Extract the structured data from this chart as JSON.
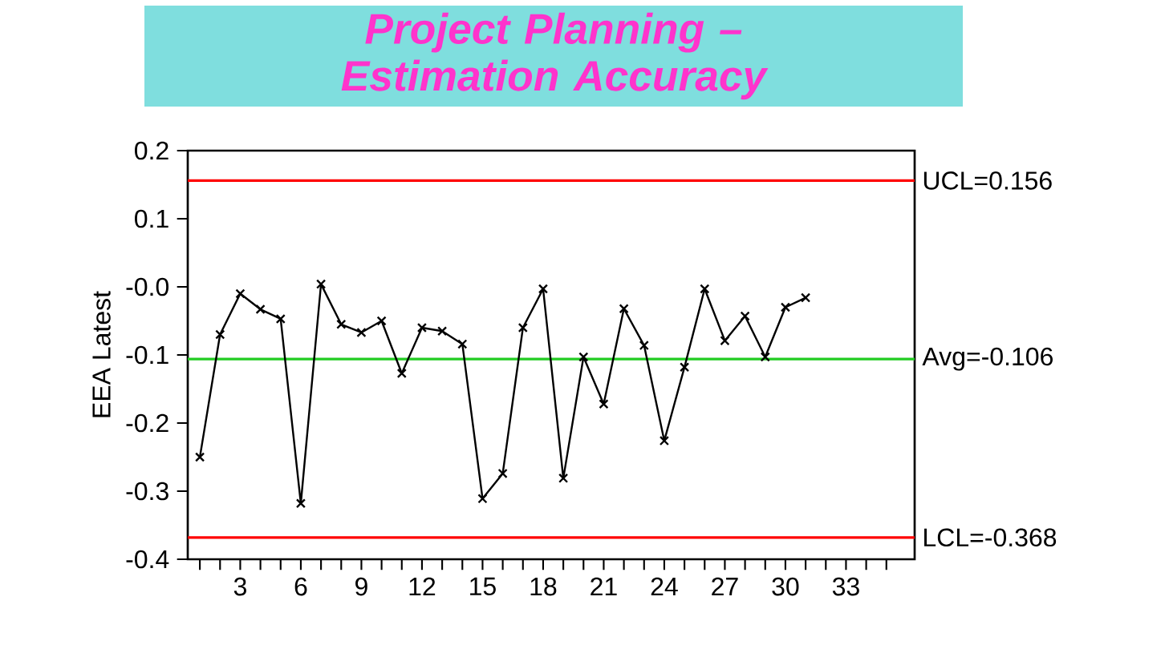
{
  "chart_data": {
    "type": "line",
    "title": "Project Planning – Estimation Accuracy",
    "ylabel": "EEA Latest",
    "x": [
      1,
      2,
      3,
      4,
      5,
      6,
      7,
      8,
      9,
      10,
      11,
      12,
      13,
      14,
      15,
      16,
      17,
      18,
      19,
      20,
      21,
      22,
      23,
      24,
      25,
      26,
      27,
      28,
      29,
      30,
      31
    ],
    "series": [
      {
        "color": "#000000",
        "values": [
          -0.25,
          -0.07,
          -0.01,
          -0.033,
          -0.047,
          -0.318,
          0.004,
          -0.055,
          -0.067,
          -0.05,
          -0.127,
          -0.06,
          -0.065,
          -0.084,
          -0.311,
          -0.274,
          -0.06,
          -0.003,
          -0.281,
          -0.103,
          -0.172,
          -0.032,
          -0.086,
          -0.226,
          -0.118,
          -0.003,
          -0.079,
          -0.043,
          -0.103,
          -0.03,
          -0.016
        ]
      }
    ],
    "marker": "cross",
    "line_style": "solid",
    "xlim": [
      0.4,
      36.4
    ],
    "ylim": [
      -0.4,
      0.2
    ],
    "xticks": [
      {
        "value": 1,
        "label": null
      },
      {
        "value": 2,
        "label": null
      },
      3,
      {
        "value": 4,
        "label": null
      },
      {
        "value": 5,
        "label": null
      },
      6,
      {
        "value": 7,
        "label": null
      },
      {
        "value": 8,
        "label": null
      },
      9,
      {
        "value": 10,
        "label": null
      },
      {
        "value": 11,
        "label": null
      },
      12,
      {
        "value": 13,
        "label": null
      },
      {
        "value": 14,
        "label": null
      },
      15,
      {
        "value": 16,
        "label": null
      },
      {
        "value": 17,
        "label": null
      },
      18,
      {
        "value": 19,
        "label": null
      },
      {
        "value": 20,
        "label": null
      },
      21,
      {
        "value": 22,
        "label": null
      },
      {
        "value": 23,
        "label": null
      },
      24,
      {
        "value": 25,
        "label": null
      },
      {
        "value": 26,
        "label": null
      },
      27,
      {
        "value": 28,
        "label": null
      },
      {
        "value": 29,
        "label": null
      },
      30,
      {
        "value": 31,
        "label": null
      },
      {
        "value": 32,
        "label": null
      },
      33,
      {
        "value": 34,
        "label": null
      },
      {
        "value": 35,
        "label": null
      }
    ],
    "yticks": [
      -0.4,
      -0.3,
      -0.2,
      -0.1,
      {
        "value": 0,
        "label": "-0.0"
      },
      0.1,
      0.2
    ],
    "ref_lines": [
      {
        "axis": "y",
        "value": 0.156,
        "label": "UCL=0.156",
        "color": "#ff0000"
      },
      {
        "axis": "y",
        "value": -0.106,
        "label": "Avg=-0.106",
        "color": "#22cc22"
      },
      {
        "axis": "y",
        "value": -0.368,
        "label": "LCL=-0.368",
        "color": "#ff0000"
      }
    ]
  }
}
